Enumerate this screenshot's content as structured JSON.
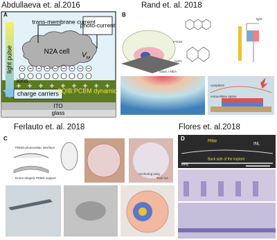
{
  "headers": [
    "Abdullaeva et. al.2016",
    "Rand et. al. 2018",
    "Ferlauto et. al. 2018",
    "Flores et. al.2018"
  ],
  "panels": [
    {
      "letter": "A",
      "labels": {
        "transmembrane": "trans-membrane current",
        "photocurrent": "photo-current",
        "light": "light pulse",
        "cell": "N2A cell",
        "vm": "V",
        "vm_sub": "M",
        "ions": "ions",
        "carriers": "charge carriers",
        "material": "SQIB:PCBM dynamics",
        "ito": "ITO",
        "glass": "glass"
      }
    },
    {
      "letter": "B",
      "labels": {
        "ptcdi": "PTCDI",
        "h2pc": "H2Pc",
        "substrate": "Glass / MEA",
        "light": "light",
        "cyto": "cytoplasm",
        "extra": "extracellular space"
      }
    },
    {
      "letter": "C",
      "labels": {
        "interface": "PDMS-photovoltaic interface",
        "support": "Dome-shaped PDMS support",
        "wing": "Anchoring wing",
        "tack": "Tack hol"
      }
    },
    {
      "letter": "D",
      "labels": {
        "pillar": "Pillar",
        "inl": "INL",
        "rpe": "RPE",
        "back": "Back side of the implant"
      }
    }
  ]
}
